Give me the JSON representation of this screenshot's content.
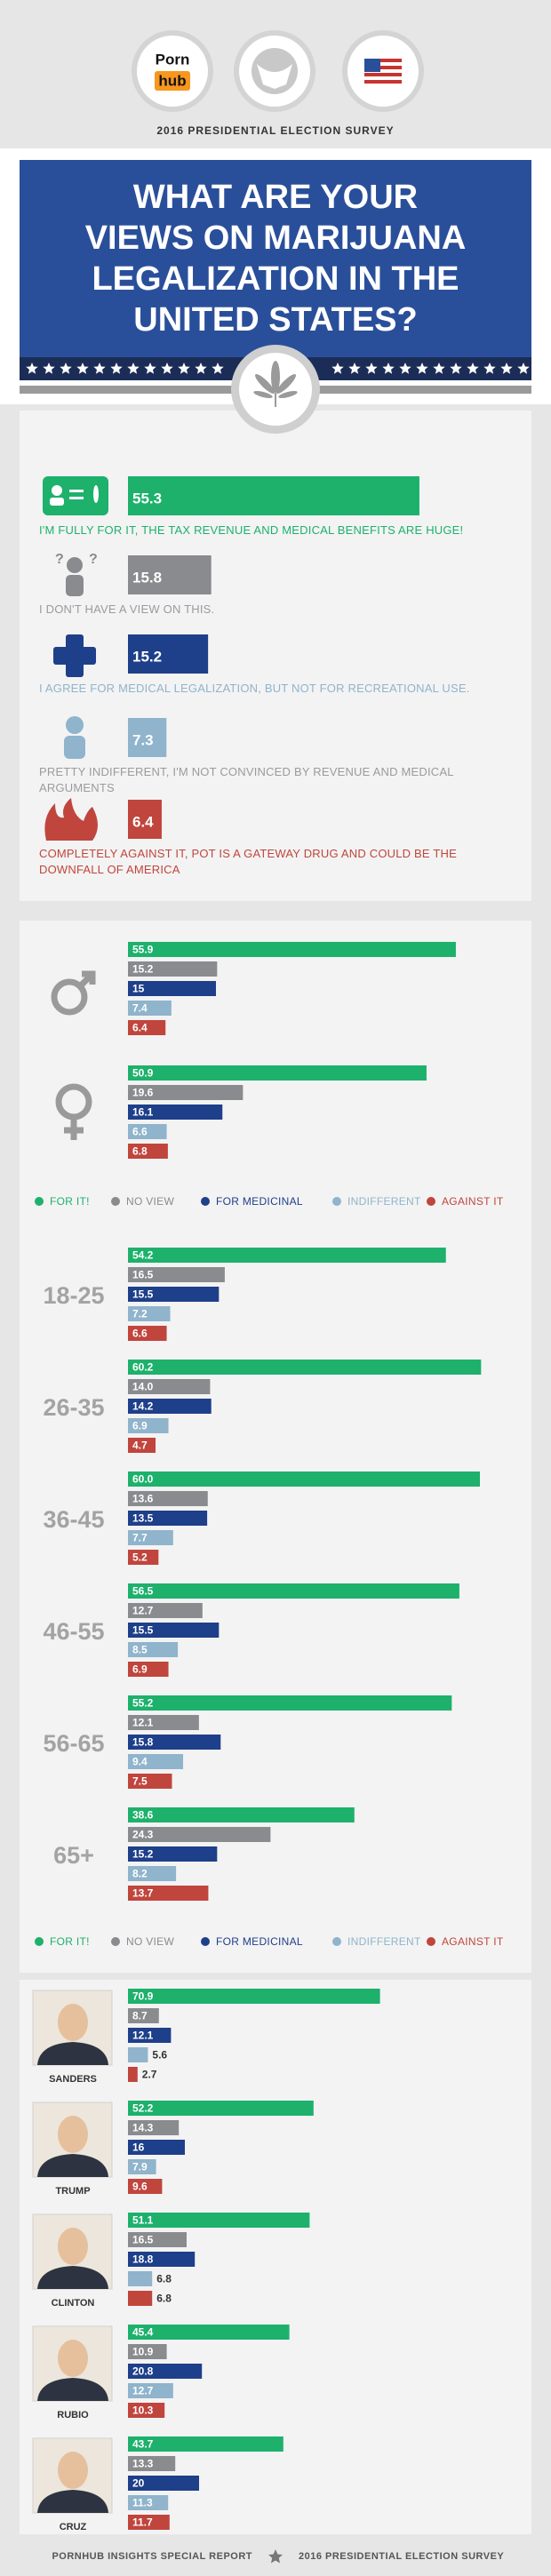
{
  "header": {
    "logo": [
      "Porn",
      "hub"
    ],
    "subtitle": "2016 PRESIDENTIAL ELECTION SURVEY",
    "title": [
      "WHAT ARE YOUR",
      "VIEWS ON MARIJUANA",
      "LEGALIZATION IN THE",
      "UNITED STATES?"
    ]
  },
  "chart_data": [
    {
      "type": "bar",
      "orientation": "horizontal",
      "categories": [
        "I'M FULLY FOR IT, THE TAX REVENUE AND MEDICAL BENEFITS ARE HUGE!",
        "I DON'T HAVE A VIEW ON THIS.",
        "I AGREE FOR MEDICAL LEGALIZATION, BUT NOT FOR RECREATIONAL USE.",
        "PRETTY INDIFFERENT, I'M NOT CONVINCED BY REVENUE AND MEDICAL ARGUMENTS",
        "COMPLETELY AGAINST IT, POT IS A GATEWAY DRUG AND COULD BE THE DOWNFALL OF AMERICA"
      ],
      "values": [
        55.3,
        15.8,
        15.2,
        7.3,
        6.4
      ],
      "colors": [
        "#1db16c",
        "#8a8b8e",
        "#1e3f8a",
        "#8fb4cc",
        "#c0453d"
      ],
      "label_colors": [
        "#1db16c",
        "#9a9b9e",
        "#8fb4cc",
        "#9a9b9e",
        "#c0453d"
      ]
    },
    {
      "type": "bar",
      "orientation": "horizontal",
      "categories": [
        null,
        null
      ],
      "series": [
        {
          "name": "FOR IT!",
          "color": "#1db16c",
          "values": [
            55.9,
            50.9
          ]
        },
        {
          "name": "NO VIEW",
          "color": "#8a8b8e",
          "values": [
            15.2,
            19.6
          ]
        },
        {
          "name": "FOR MEDICINAL",
          "color": "#1e3f8a",
          "values": [
            15,
            16.1
          ]
        },
        {
          "name": "INDIFFERENT",
          "color": "#8fb4cc",
          "values": [
            7.4,
            6.6
          ]
        },
        {
          "name": "AGAINST IT",
          "color": "#c0453d",
          "values": [
            6.4,
            6.8
          ]
        }
      ]
    },
    {
      "type": "bar",
      "orientation": "horizontal",
      "categories": [
        "18-25",
        "26-35",
        "36-45",
        "46-55",
        "56-65",
        "65+"
      ],
      "series": [
        {
          "name": "FOR IT!",
          "color": "#1db16c",
          "values": [
            54.2,
            60.2,
            60.0,
            56.5,
            55.2,
            38.6
          ],
          "value_labels": [
            "54.2",
            "60.2",
            "60.0",
            "56.5",
            "55.2",
            "38.6"
          ]
        },
        {
          "name": "NO VIEW",
          "color": "#8a8b8e",
          "values": [
            16.5,
            14.0,
            13.6,
            12.7,
            12.1,
            24.3
          ],
          "value_labels": [
            "16.5",
            "14.0",
            "13.6",
            "12.7",
            "12.1",
            "24.3"
          ]
        },
        {
          "name": "FOR MEDICINAL",
          "color": "#1e3f8a",
          "values": [
            15.5,
            14.2,
            13.5,
            15.5,
            15.8,
            15.2
          ]
        },
        {
          "name": "INDIFFERENT",
          "color": "#8fb4cc",
          "values": [
            7.2,
            6.9,
            7.7,
            8.5,
            9.4,
            8.2
          ]
        },
        {
          "name": "AGAINST IT",
          "color": "#c0453d",
          "values": [
            6.6,
            4.7,
            5.2,
            6.9,
            7.5,
            13.7
          ]
        }
      ]
    },
    {
      "type": "bar",
      "orientation": "horizontal",
      "categories": [
        "SANDERS",
        "TRUMP",
        "CLINTON",
        "RUBIO",
        "CRUZ"
      ],
      "series": [
        {
          "color": "#1db16c",
          "values": [
            70.9,
            52.2,
            51.1,
            45.4,
            43.7
          ]
        },
        {
          "color": "#8a8b8e",
          "values": [
            8.7,
            14.3,
            16.5,
            10.9,
            13.3
          ]
        },
        {
          "color": "#1e3f8a",
          "values": [
            12.1,
            16,
            18.8,
            20.8,
            20
          ]
        },
        {
          "color": "#8fb4cc",
          "values": [
            5.6,
            7.9,
            6.8,
            12.7,
            11.3
          ]
        },
        {
          "color": "#c0453d",
          "values": [
            2.7,
            9.6,
            6.8,
            10.3,
            11.7
          ]
        }
      ]
    }
  ],
  "footer": {
    "left": "PORNHUB INSIGHTS SPECIAL REPORT",
    "right": "2016 PRESIDENTIAL ELECTION SURVEY"
  }
}
